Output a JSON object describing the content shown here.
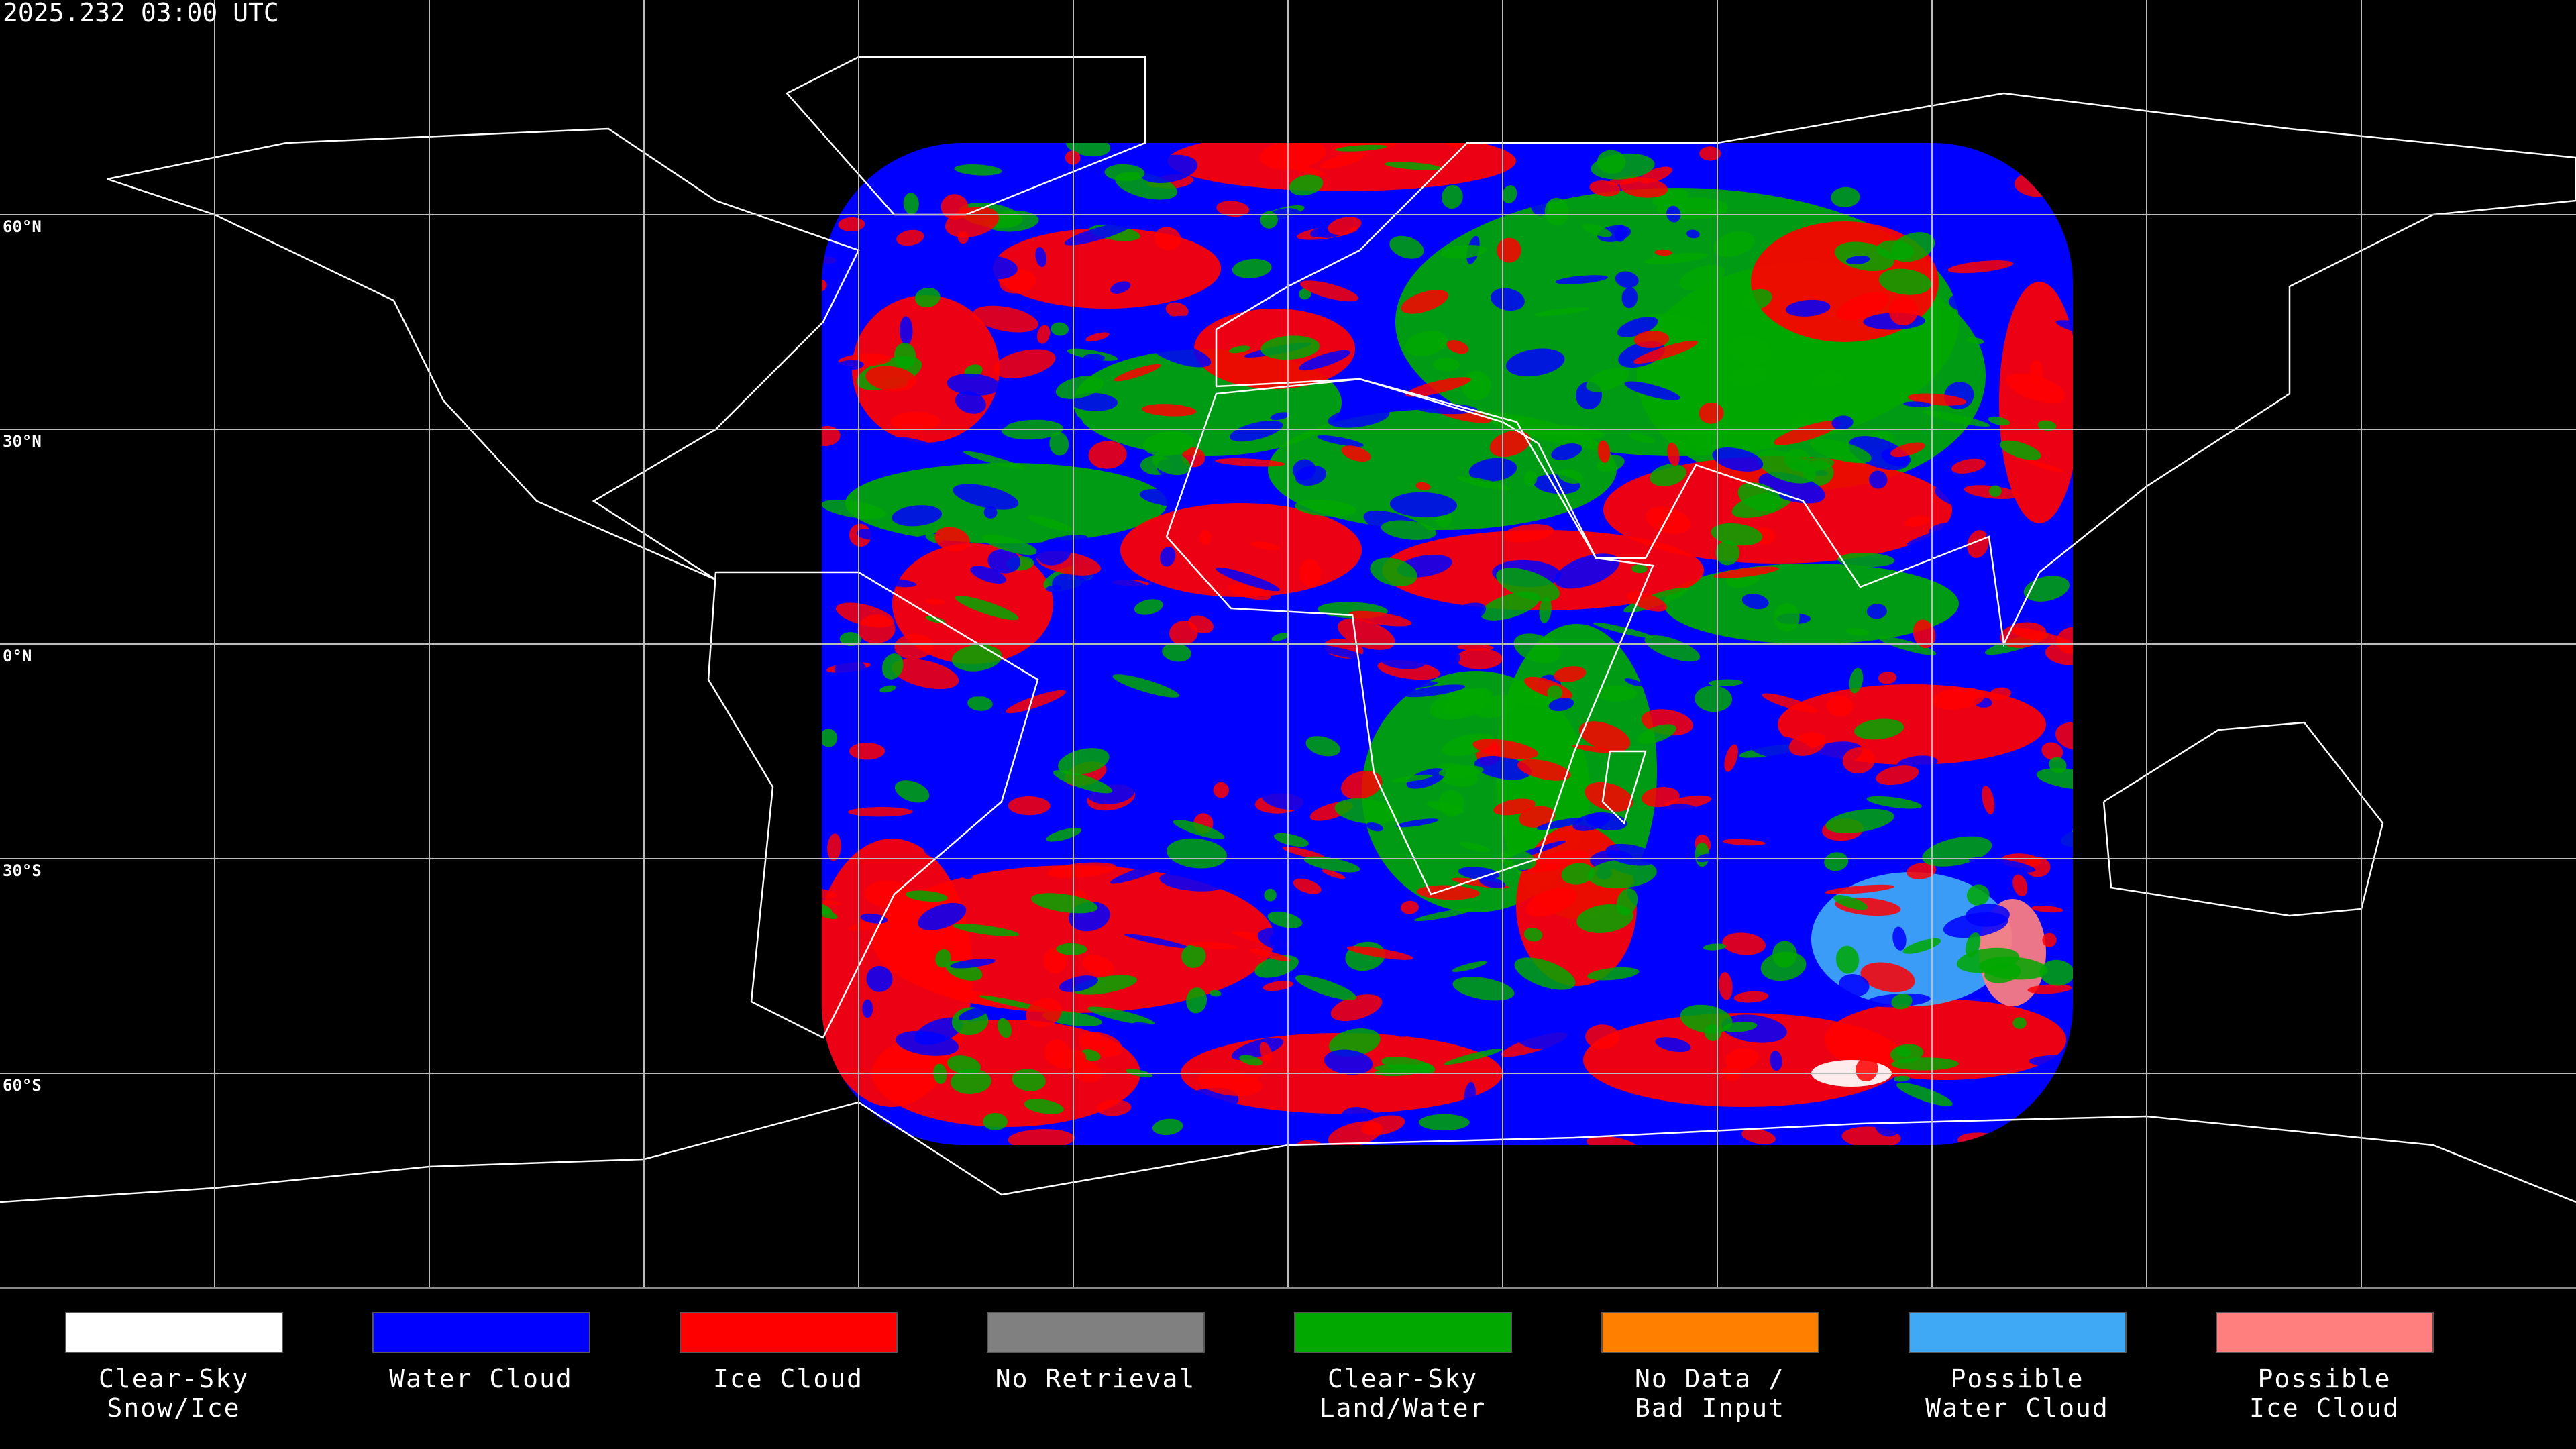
{
  "header": {
    "timestamp": "2025.232 03:00 UTC"
  },
  "map": {
    "lat_labels": [
      "60°N",
      "30°N",
      "0°N",
      "30°S",
      "60°S"
    ]
  },
  "legend": [
    {
      "label_lines": [
        "Clear-Sky",
        "Snow/Ice"
      ],
      "color": "#ffffff"
    },
    {
      "label_lines": [
        "Water Cloud"
      ],
      "color": "#0000ff"
    },
    {
      "label_lines": [
        "Ice Cloud"
      ],
      "color": "#ff0000"
    },
    {
      "label_lines": [
        "No Retrieval"
      ],
      "color": "#808080"
    },
    {
      "label_lines": [
        "Clear-Sky",
        "Land/Water"
      ],
      "color": "#00a800"
    },
    {
      "label_lines": [
        "No Data /",
        "Bad Input"
      ],
      "color": "#ff8000"
    },
    {
      "label_lines": [
        "Possible",
        "Water Cloud"
      ],
      "color": "#3fa9f5"
    },
    {
      "label_lines": [
        "Possible",
        "Ice Cloud"
      ],
      "color": "#ff7f7f"
    }
  ]
}
